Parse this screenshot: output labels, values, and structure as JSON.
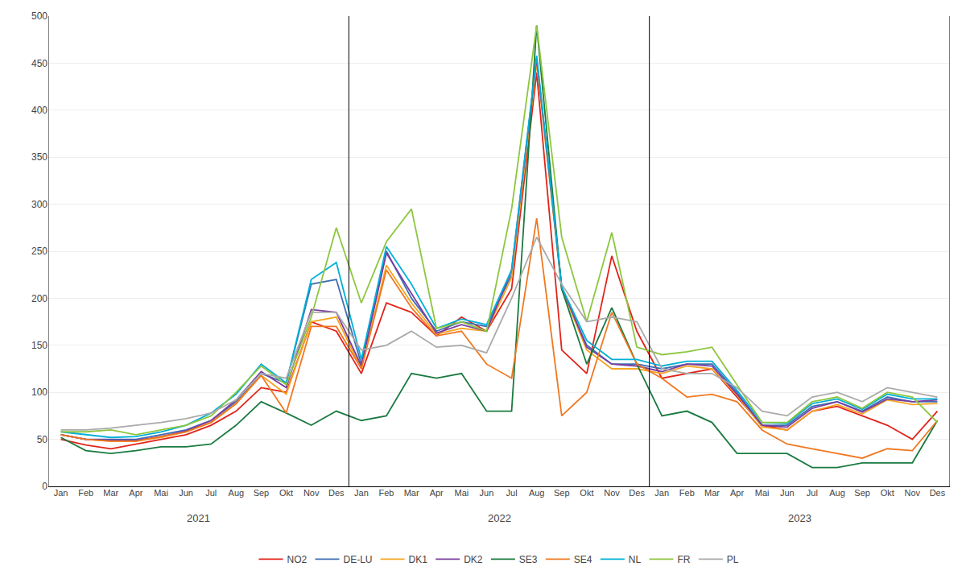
{
  "chart_data": {
    "type": "line",
    "categories": [
      "Jan",
      "Feb",
      "Mar",
      "Apr",
      "Mai",
      "Jun",
      "Jul",
      "Aug",
      "Sep",
      "Okt",
      "Nov",
      "Des",
      "Jan",
      "Feb",
      "Mar",
      "Apr",
      "Mai",
      "Jun",
      "Jul",
      "Aug",
      "Sep",
      "Okt",
      "Nov",
      "Des",
      "Jan",
      "Feb",
      "Mar",
      "Apr",
      "Mai",
      "Jun",
      "Jul",
      "Aug",
      "Sep",
      "Okt",
      "Nov",
      "Des"
    ],
    "series": [
      {
        "name": "NO2",
        "color": "#e2231a",
        "values": [
          50,
          44,
          40,
          45,
          50,
          55,
          65,
          80,
          105,
          100,
          175,
          165,
          120,
          195,
          185,
          160,
          180,
          165,
          210,
          440,
          145,
          120,
          245,
          165,
          115,
          120,
          125,
          95,
          65,
          60,
          80,
          85,
          75,
          65,
          50,
          80
        ]
      },
      {
        "name": "DE-LU",
        "color": "#3e6eb4",
        "values": [
          55,
          50,
          50,
          50,
          55,
          60,
          70,
          90,
          120,
          110,
          215,
          220,
          130,
          250,
          200,
          165,
          175,
          170,
          225,
          455,
          210,
          150,
          130,
          130,
          125,
          130,
          130,
          100,
          65,
          65,
          85,
          90,
          80,
          95,
          90,
          90
        ]
      },
      {
        "name": "DK1",
        "color": "#f5a623",
        "values": [
          55,
          50,
          48,
          48,
          52,
          58,
          68,
          88,
          118,
          98,
          175,
          180,
          125,
          235,
          195,
          162,
          168,
          165,
          222,
          450,
          210,
          145,
          125,
          125,
          120,
          128,
          125,
          97,
          63,
          60,
          80,
          87,
          77,
          92,
          87,
          88
        ]
      },
      {
        "name": "DK2",
        "color": "#7b3fa0",
        "values": [
          55,
          50,
          49,
          49,
          53,
          59,
          70,
          92,
          122,
          105,
          188,
          185,
          128,
          248,
          205,
          163,
          172,
          165,
          230,
          455,
          212,
          148,
          130,
          128,
          122,
          130,
          128,
          98,
          65,
          63,
          83,
          90,
          79,
          93,
          90,
          92
        ]
      },
      {
        "name": "SE3",
        "color": "#1a7a40",
        "values": [
          52,
          38,
          35,
          38,
          42,
          42,
          45,
          65,
          90,
          78,
          65,
          80,
          70,
          75,
          120,
          115,
          120,
          80,
          80,
          490,
          210,
          130,
          190,
          130,
          75,
          80,
          68,
          35,
          35,
          35,
          20,
          20,
          25,
          25,
          25,
          70
        ]
      },
      {
        "name": "SE4",
        "color": "#f07820",
        "values": [
          55,
          50,
          48,
          48,
          53,
          58,
          68,
          88,
          118,
          78,
          170,
          170,
          125,
          230,
          190,
          160,
          165,
          130,
          115,
          285,
          75,
          100,
          185,
          130,
          115,
          95,
          98,
          90,
          60,
          45,
          40,
          35,
          30,
          40,
          38,
          70
        ]
      },
      {
        "name": "NL",
        "color": "#00b0d8",
        "values": [
          58,
          55,
          52,
          53,
          58,
          65,
          78,
          98,
          130,
          110,
          220,
          238,
          135,
          255,
          215,
          168,
          178,
          172,
          230,
          458,
          212,
          155,
          135,
          135,
          128,
          133,
          133,
          102,
          68,
          67,
          88,
          93,
          82,
          98,
          93,
          93
        ]
      },
      {
        "name": "FR",
        "color": "#8dc63f",
        "values": [
          58,
          58,
          60,
          55,
          60,
          65,
          75,
          100,
          128,
          108,
          180,
          275,
          195,
          260,
          295,
          168,
          175,
          165,
          295,
          490,
          265,
          175,
          270,
          148,
          140,
          143,
          148,
          108,
          68,
          68,
          90,
          95,
          83,
          100,
          95,
          68
        ]
      },
      {
        "name": "PL",
        "color": "#aaaaaa",
        "values": [
          60,
          60,
          62,
          65,
          68,
          72,
          78,
          92,
          120,
          115,
          185,
          185,
          145,
          150,
          165,
          148,
          150,
          142,
          200,
          265,
          215,
          175,
          180,
          175,
          125,
          120,
          120,
          105,
          80,
          75,
          95,
          100,
          90,
          105,
          100,
          95
        ]
      }
    ],
    "ylim": [
      0,
      500
    ],
    "yticks": [
      0,
      50,
      100,
      150,
      200,
      250,
      300,
      350,
      400,
      450,
      500
    ],
    "grid": true,
    "legend": "bottom",
    "annotations": [
      "2021",
      "2022",
      "2023"
    ]
  }
}
